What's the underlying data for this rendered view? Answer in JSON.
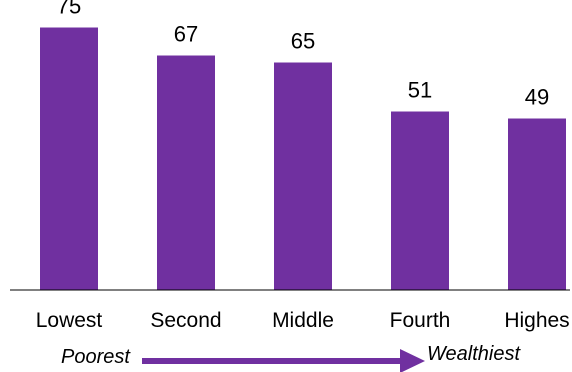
{
  "chart_data": {
    "type": "bar",
    "categories": [
      "Lowest",
      "Second",
      "Middle",
      "Fourth",
      "Highes"
    ],
    "values": [
      75,
      67,
      65,
      51,
      49
    ],
    "data_labels": [
      "75",
      "67",
      "65",
      "51",
      "49"
    ],
    "ylim": [
      0,
      80
    ],
    "grid": false,
    "legend": "none",
    "bar_color": "#7030a0",
    "title": "",
    "xlabel": "",
    "ylabel": ""
  },
  "wealth_arrow": {
    "start_label": "Poorest",
    "end_label": "Wealthiest",
    "color": "#7030a0",
    "icon": "right-arrow-icon"
  }
}
